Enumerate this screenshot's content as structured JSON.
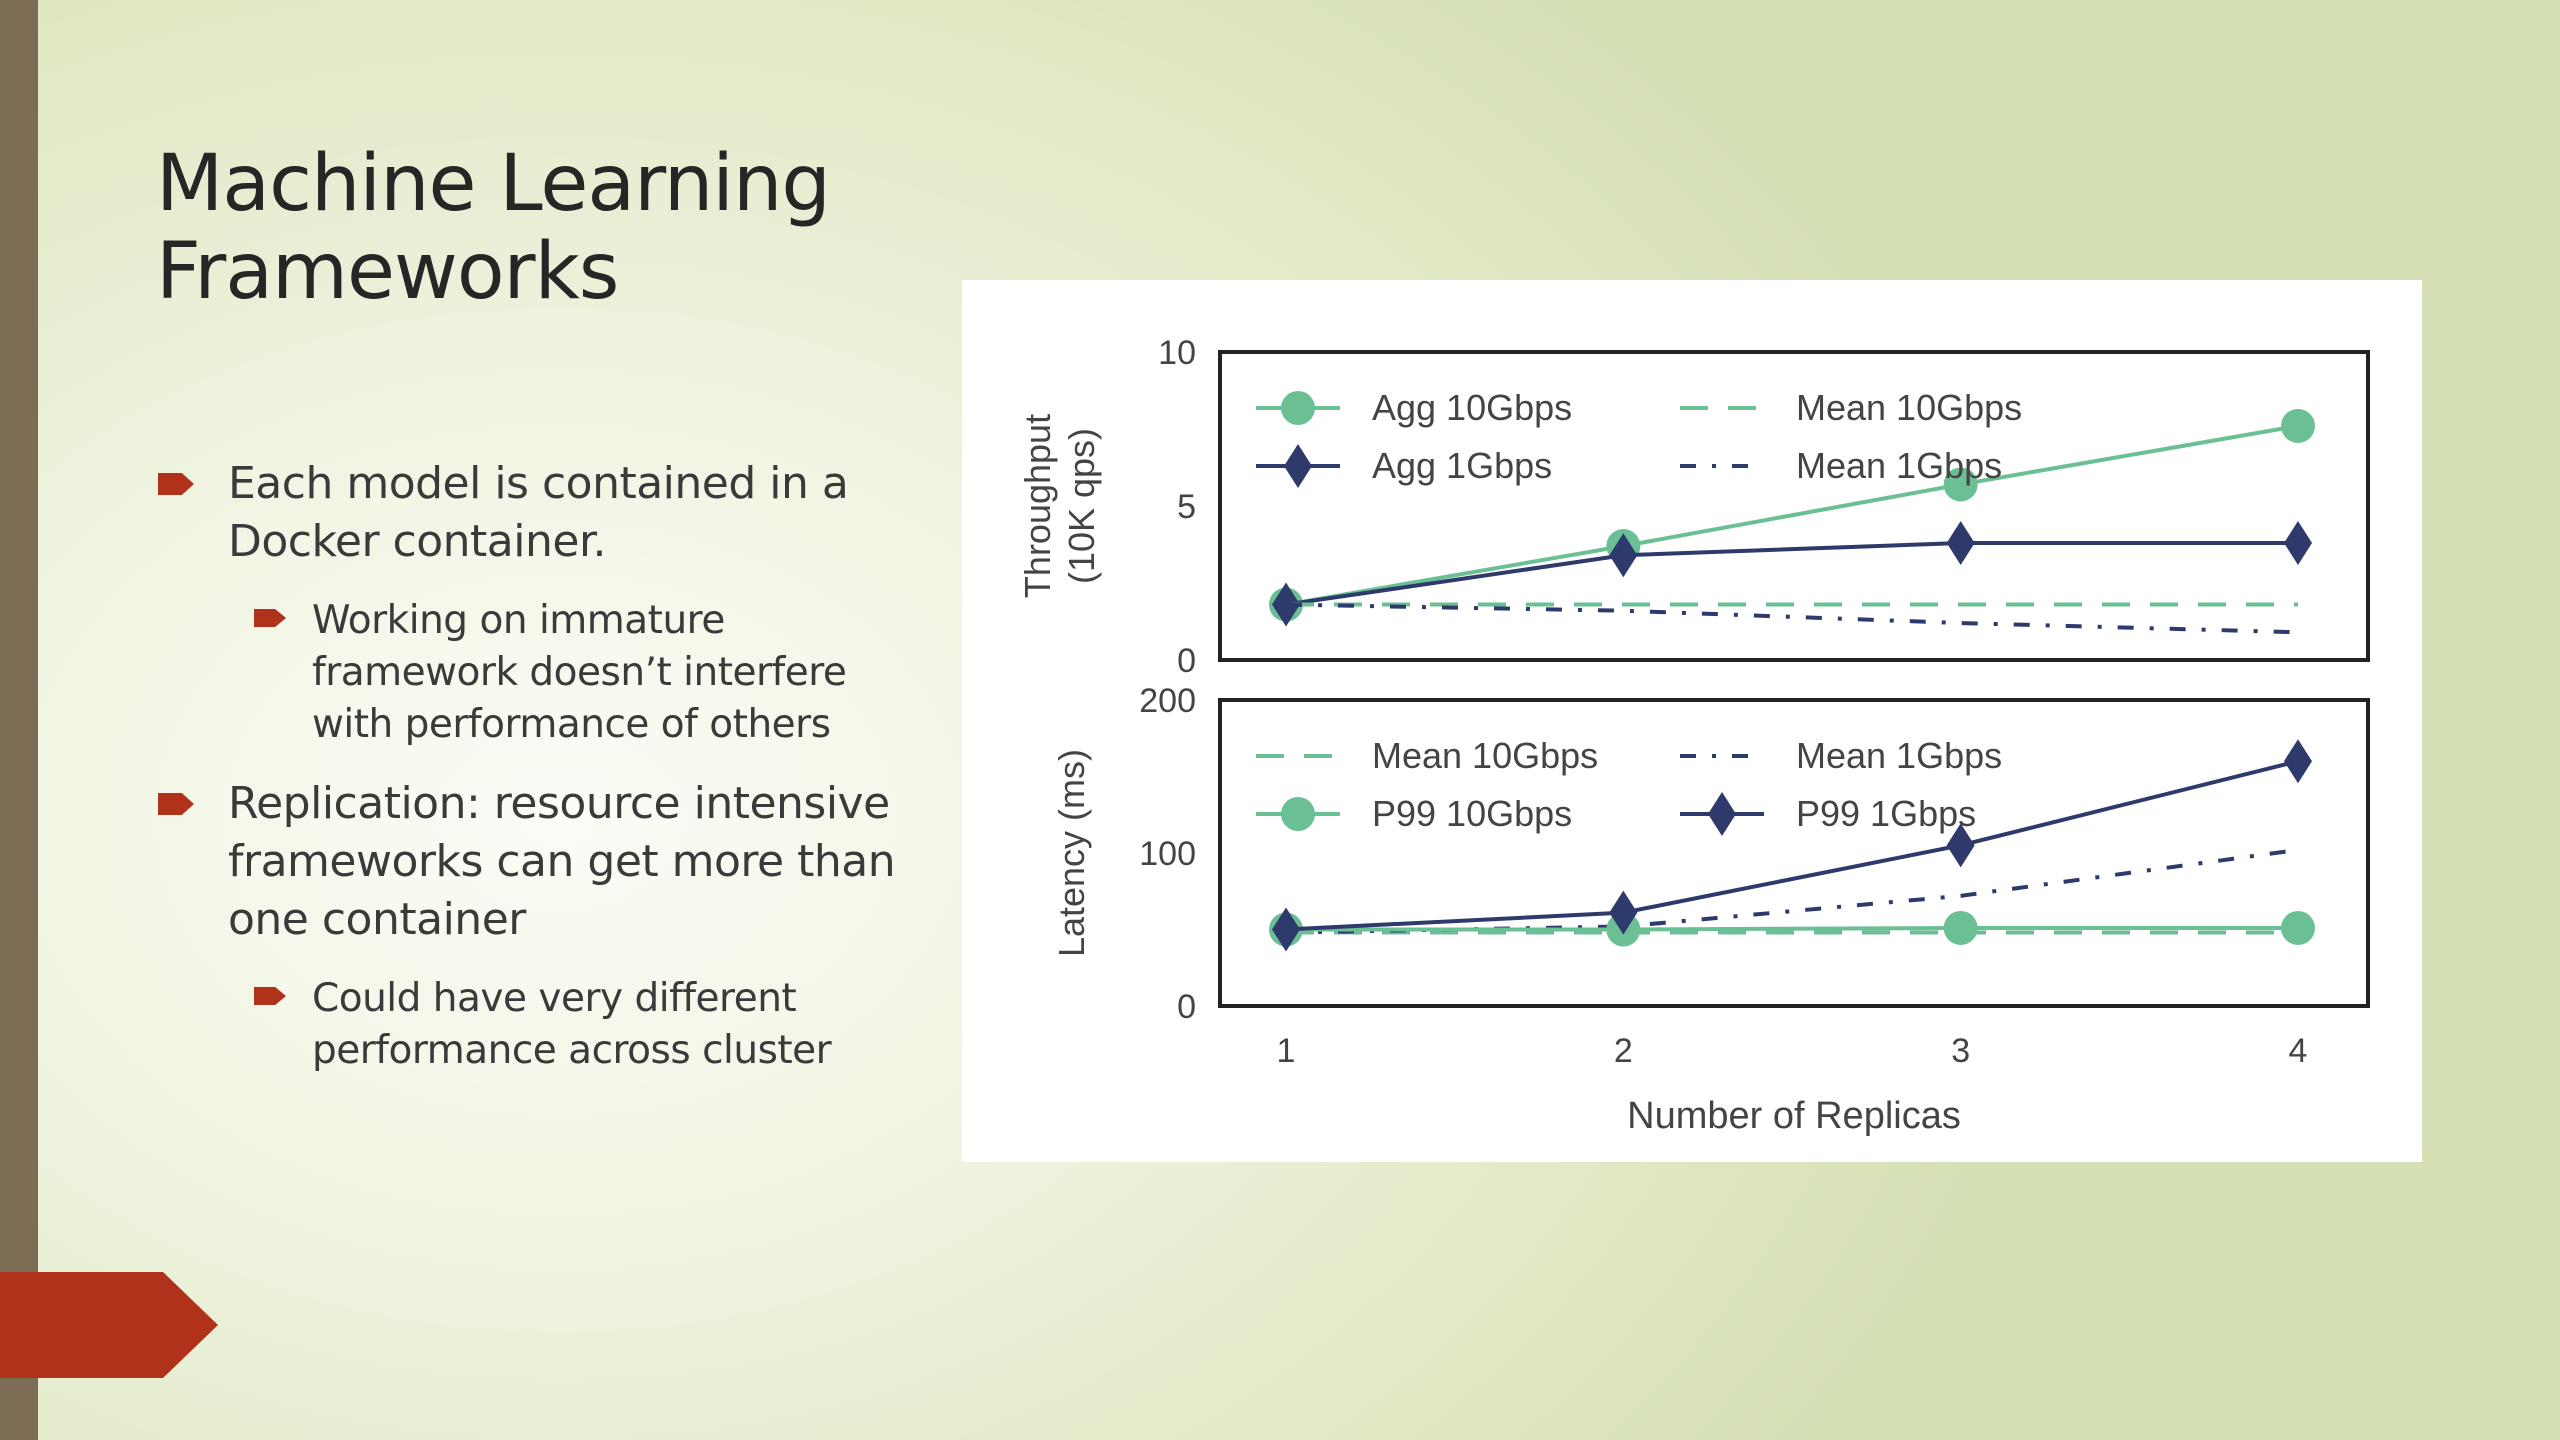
{
  "slide": {
    "title": "Machine Learning\nFrameworks",
    "bullets": [
      {
        "level": 1,
        "text": "Each model is contained in a Docker container."
      },
      {
        "level": 2,
        "text": "Working on immature framework doesn’t interfere with performance of others"
      },
      {
        "level": 1,
        "text": "Replication: resource intensive frameworks can get more than one container"
      },
      {
        "level": 2,
        "text": "Could have very different performance across cluster"
      }
    ]
  },
  "colors": {
    "green": "#6bbf95",
    "navy": "#2e3a6b",
    "accent": "#b0321b",
    "sidebar": "#7b6c53"
  },
  "chart_data": [
    {
      "type": "line",
      "ylabel": "Throughput\n(10K qps)",
      "x": [
        1,
        2,
        3,
        4
      ],
      "ylim": [
        0,
        10
      ],
      "yticks": [
        0,
        5,
        10
      ],
      "series": [
        {
          "name": "Agg 10Gbps",
          "style": "solid-circle",
          "color": "#6bbf95",
          "values": [
            1.8,
            3.7,
            5.7,
            7.6
          ]
        },
        {
          "name": "Agg 1Gbps",
          "style": "solid-diamond",
          "color": "#2e3a6b",
          "values": [
            1.8,
            3.4,
            3.8,
            3.8
          ]
        },
        {
          "name": "Mean 10Gbps",
          "style": "dashed",
          "color": "#6bbf95",
          "values": [
            1.8,
            1.8,
            1.8,
            1.8
          ]
        },
        {
          "name": "Mean 1Gbps",
          "style": "dashdot",
          "color": "#2e3a6b",
          "values": [
            1.8,
            1.6,
            1.2,
            0.9
          ]
        }
      ],
      "legend": "top-left, two columns"
    },
    {
      "type": "line",
      "ylabel": "Latency (ms)",
      "xlabel": "Number of Replicas",
      "x": [
        1,
        2,
        3,
        4
      ],
      "xticks": [
        "1",
        "2",
        "3",
        "4"
      ],
      "ylim": [
        0,
        200
      ],
      "yticks": [
        0,
        100,
        200
      ],
      "series": [
        {
          "name": "Mean 10Gbps",
          "style": "dashed",
          "color": "#6bbf95",
          "values": [
            48,
            48,
            48,
            48
          ]
        },
        {
          "name": "Mean 1Gbps",
          "style": "dashdot",
          "color": "#2e3a6b",
          "values": [
            48,
            52,
            72,
            102
          ]
        },
        {
          "name": "P99 10Gbps",
          "style": "solid-circle",
          "color": "#6bbf95",
          "values": [
            50,
            50,
            51,
            51
          ]
        },
        {
          "name": "P99 1Gbps",
          "style": "solid-diamond",
          "color": "#2e3a6b",
          "values": [
            50,
            61,
            105,
            160
          ]
        }
      ],
      "legend": "top-left, two columns"
    }
  ]
}
